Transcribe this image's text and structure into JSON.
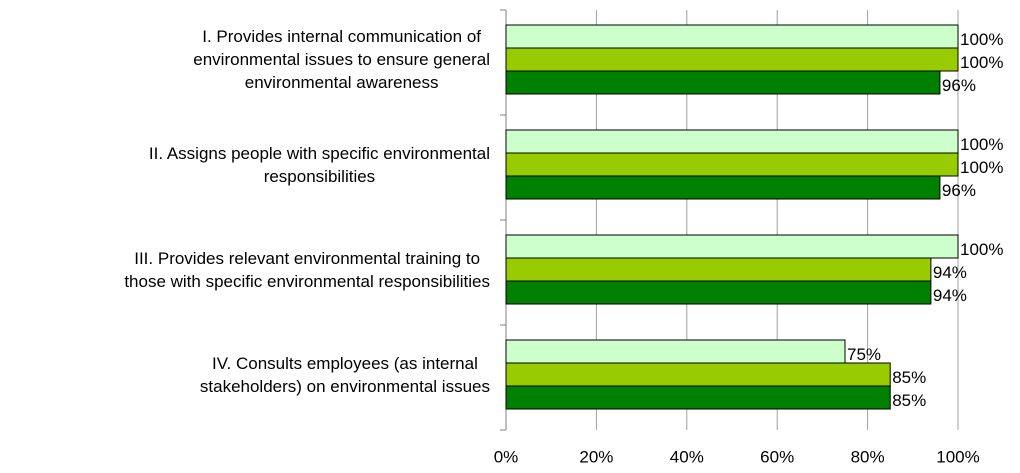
{
  "chart_data": {
    "type": "bar",
    "orientation": "horizontal",
    "categories": [
      "I. Provides internal communication of\nenvironmental issues to ensure general\nenvironmental awareness",
      "II. Assigns people with specific environmental\nresponsibilities",
      "III. Provides relevant environmental training to\nthose with specific environmental responsibilities",
      "IV. Consults employees (as internal\nstakeholders) on environmental issues"
    ],
    "series": [
      {
        "color": "#ccffcc",
        "values": [
          100,
          100,
          100,
          75
        ],
        "value_labels": [
          "100%",
          "100%",
          "100%",
          "75%"
        ]
      },
      {
        "color": "#99cc00",
        "values": [
          100,
          100,
          94,
          85
        ],
        "value_labels": [
          "100%",
          "100%",
          "94%",
          "85%"
        ]
      },
      {
        "color": "#008000",
        "values": [
          96,
          96,
          94,
          85
        ],
        "value_labels": [
          "96%",
          "96%",
          "94%",
          "85%"
        ]
      }
    ],
    "xlim": [
      0,
      100
    ],
    "xticks": [
      {
        "value": 0,
        "label": "0%"
      },
      {
        "value": 20,
        "label": "20%"
      },
      {
        "value": 40,
        "label": "40%"
      },
      {
        "value": 60,
        "label": "60%"
      },
      {
        "value": 80,
        "label": "80%"
      },
      {
        "value": 100,
        "label": "100%"
      }
    ],
    "grid": true
  }
}
